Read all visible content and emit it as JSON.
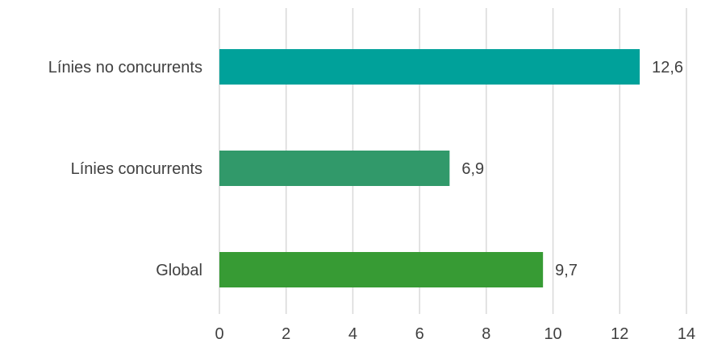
{
  "chart_data": {
    "type": "bar",
    "orientation": "horizontal",
    "categories": [
      "Línies no concurrents",
      "Línies concurrents",
      "Global"
    ],
    "values": [
      12.6,
      6.9,
      9.7
    ],
    "value_labels": [
      "12,6",
      "6,9",
      "9,7"
    ],
    "xlim": [
      0,
      14
    ],
    "x_ticks": [
      0,
      2,
      4,
      6,
      8,
      10,
      12,
      14
    ],
    "tick_labels": [
      "0",
      "2",
      "4",
      "6",
      "8",
      "10",
      "12",
      "14"
    ],
    "title": "",
    "xlabel": "",
    "ylabel": "",
    "grid": "vertical",
    "legend": "none",
    "colors": [
      "#00A19A",
      "#31996A",
      "#379B34"
    ]
  }
}
